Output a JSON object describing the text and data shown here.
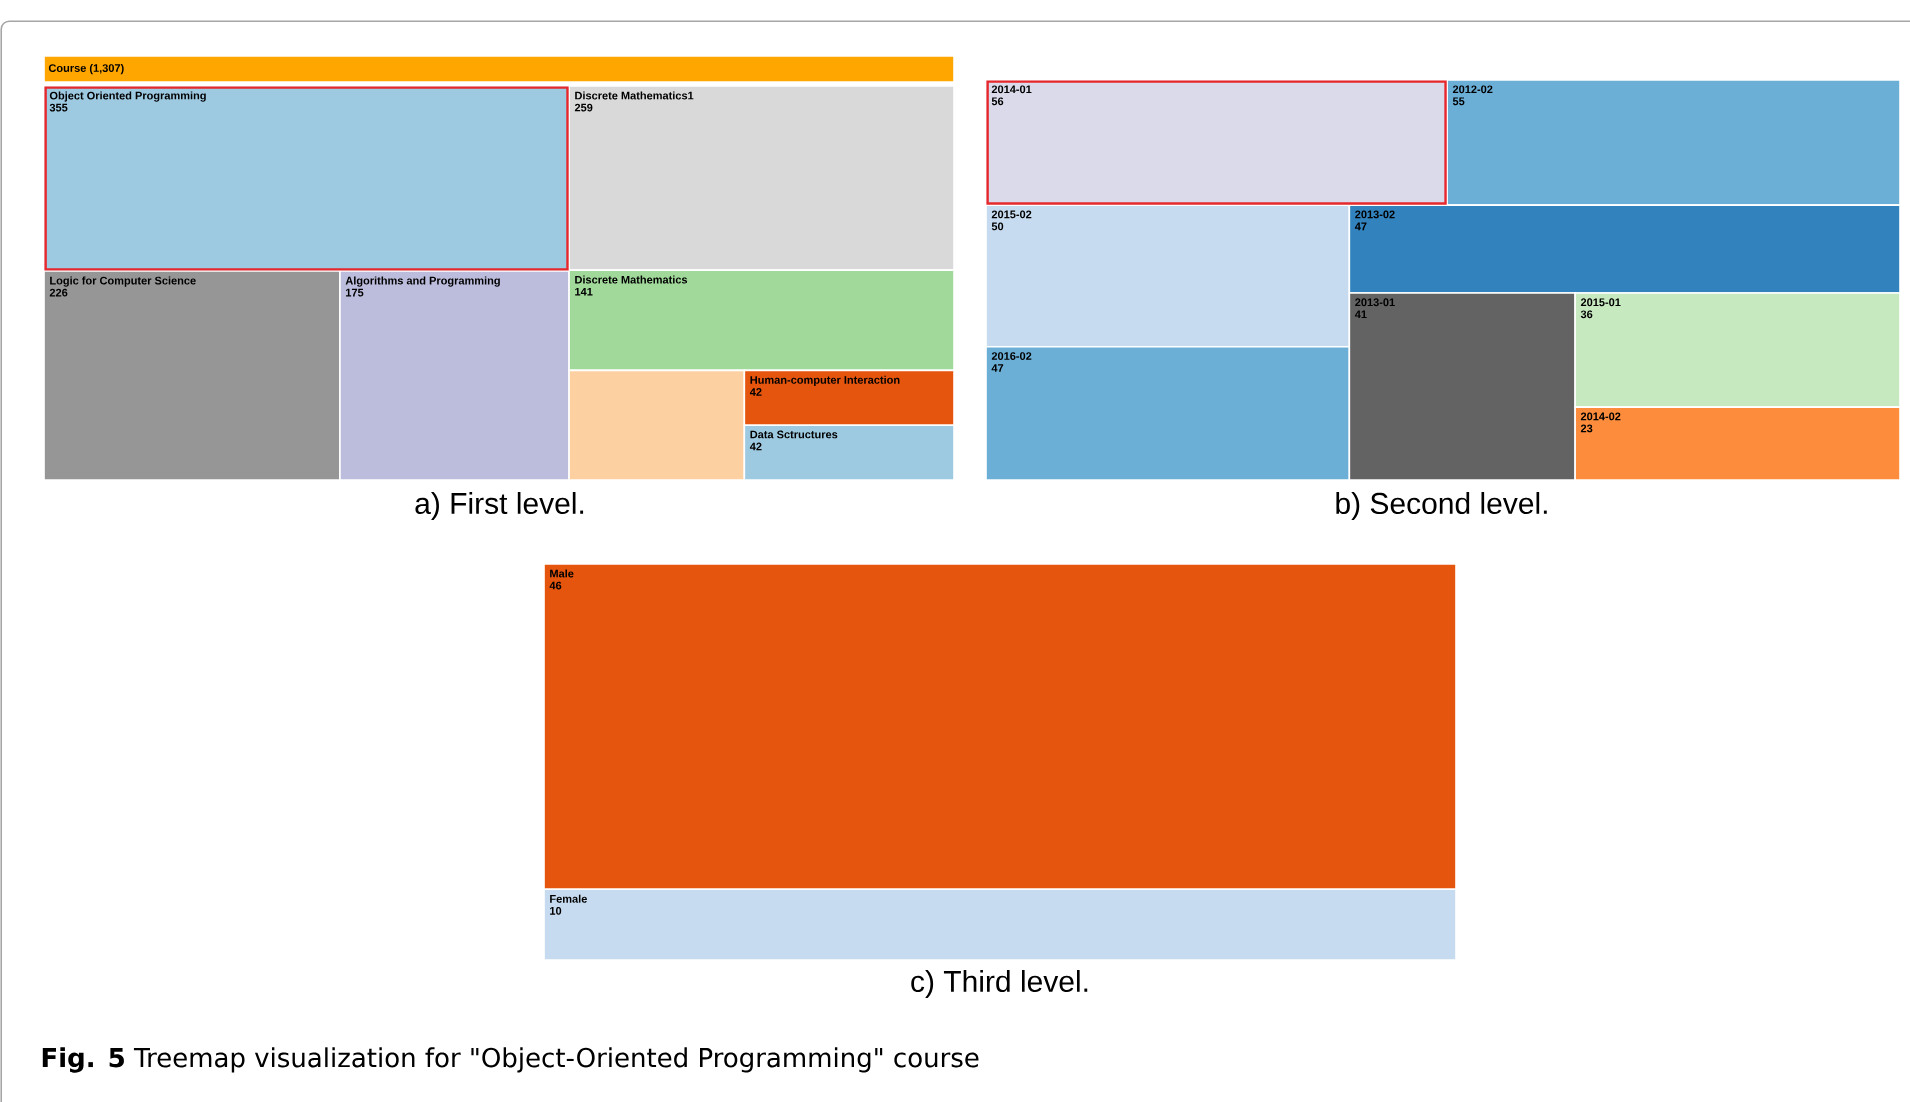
{
  "chart_data": [
    {
      "type": "other",
      "title": "a) First level.",
      "subtitle": "Course (1,307)",
      "color": "#ffa600",
      "categories": [
        "Object Oriented Programming",
        "Discrete Mathematics1",
        "Logic for Computer Science",
        "Algorithms and Programming",
        "Discrete Mathematics",
        null,
        "Human-computer Interaction",
        "Data Sctructures"
      ],
      "values": [
        355,
        259,
        226,
        175,
        141,
        null,
        42,
        42
      ],
      "colors": [
        "#9ecae1",
        "#d9d9d9",
        "#969696",
        "#bcbddc",
        "#a1d99b",
        "#fdd0a2",
        "#e6550d",
        "#9ecae1"
      ],
      "data_labels": true
    },
    {
      "type": "other",
      "title": "b) Second level.",
      "categories": [
        "2014-01",
        "2012-02",
        "2015-02",
        "2016-02",
        "2013-02",
        "2013-01",
        "2015-01",
        "2014-02"
      ],
      "values": [
        56,
        55,
        50,
        47,
        47,
        41,
        36,
        23
      ],
      "colors": [
        "#dadaeb",
        "#6baed6",
        "#c6dbef",
        "#6baed6",
        "#3182bd",
        "#636363",
        "#c7e9c0",
        "#fd8d3c"
      ],
      "data_labels": true
    },
    {
      "type": "other",
      "title": "c) Third level.",
      "categories": [
        "Male",
        "Female"
      ],
      "values": [
        46,
        10
      ],
      "colors": [
        "#e6550d",
        "#c6dbef"
      ],
      "data_labels": true,
      "annotations": [
        "**Fig. 5** Treemap visualization for \"Object-Oriented Programming\" course"
      ]
    }
  ]
}
